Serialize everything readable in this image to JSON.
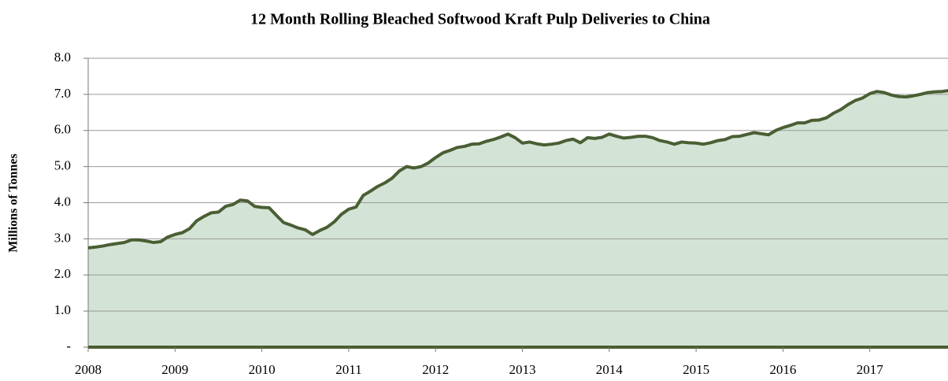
{
  "chart_data": {
    "type": "area",
    "title": "12 Month Rolling Bleached Softwood Kraft Pulp Deliveries to China",
    "y_label": "Millions of Tonnes",
    "categories": [
      "2008",
      null,
      null,
      null,
      null,
      null,
      null,
      null,
      null,
      null,
      null,
      null,
      "2009",
      null,
      null,
      null,
      null,
      null,
      null,
      null,
      null,
      null,
      null,
      null,
      "2010",
      null,
      null,
      null,
      null,
      null,
      null,
      null,
      null,
      null,
      null,
      null,
      "2011",
      null,
      null,
      null,
      null,
      null,
      null,
      null,
      null,
      null,
      null,
      null,
      "2012",
      null,
      null,
      null,
      null,
      null,
      null,
      null,
      null,
      null,
      null,
      null,
      "2013",
      null,
      null,
      null,
      null,
      null,
      null,
      null,
      null,
      null,
      null,
      null,
      "2014",
      null,
      null,
      null,
      null,
      null,
      null,
      null,
      null,
      null,
      null,
      null,
      "2015",
      null,
      null,
      null,
      null,
      null,
      null,
      null,
      null,
      null,
      null,
      null,
      "2016",
      null,
      null,
      null,
      null,
      null,
      null,
      null,
      null,
      null,
      null,
      null,
      "2017",
      null,
      null,
      null,
      null,
      null,
      null,
      null,
      null,
      null,
      null,
      null
    ],
    "values": [
      2.75,
      2.77,
      2.8,
      2.84,
      2.87,
      2.9,
      2.97,
      2.97,
      2.94,
      2.9,
      2.92,
      3.05,
      3.12,
      3.17,
      3.28,
      3.5,
      3.62,
      3.72,
      3.74,
      3.9,
      3.95,
      4.07,
      4.05,
      3.9,
      3.87,
      3.86,
      3.65,
      3.45,
      3.38,
      3.3,
      3.25,
      3.12,
      3.23,
      3.32,
      3.47,
      3.68,
      3.82,
      3.88,
      4.2,
      4.32,
      4.45,
      4.55,
      4.68,
      4.88,
      5.0,
      4.96,
      5.0,
      5.1,
      5.25,
      5.38,
      5.45,
      5.53,
      5.56,
      5.62,
      5.63,
      5.7,
      5.75,
      5.82,
      5.9,
      5.8,
      5.65,
      5.68,
      5.63,
      5.6,
      5.62,
      5.65,
      5.72,
      5.76,
      5.66,
      5.8,
      5.78,
      5.81,
      5.9,
      5.84,
      5.79,
      5.81,
      5.84,
      5.84,
      5.8,
      5.72,
      5.68,
      5.62,
      5.68,
      5.66,
      5.65,
      5.62,
      5.66,
      5.72,
      5.75,
      5.83,
      5.84,
      5.89,
      5.94,
      5.91,
      5.88,
      6.0,
      6.08,
      6.14,
      6.21,
      6.21,
      6.28,
      6.29,
      6.35,
      6.48,
      6.58,
      6.72,
      6.83,
      6.9,
      7.02,
      7.08,
      7.05,
      6.98,
      6.94,
      6.93,
      6.96,
      7.0,
      7.05,
      7.07,
      7.08,
      7.11
    ],
    "color": "#4a5e33",
    "fill": "#d3e4d6",
    "ylim": [
      0,
      8
    ],
    "yticks": [
      {
        "value": 0,
        "label": "-"
      },
      {
        "value": 1,
        "label": "1.0"
      },
      {
        "value": 2,
        "label": "2.0"
      },
      {
        "value": 3,
        "label": "3.0"
      },
      {
        "value": 4,
        "label": "4.0"
      },
      {
        "value": 5,
        "label": "5.0"
      },
      {
        "value": 6,
        "label": "6.0"
      },
      {
        "value": 7,
        "label": "7.0"
      },
      {
        "value": 8,
        "label": "8.0"
      }
    ],
    "grid": true
  }
}
